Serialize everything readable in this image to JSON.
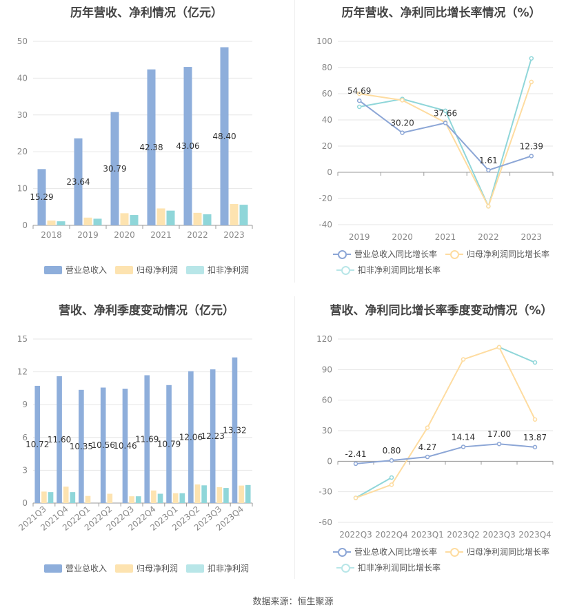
{
  "colors": {
    "revenue": "#8eaedb",
    "net_profit": "#fde3b0",
    "deducted_profit": "#8fd6d9",
    "revenue_line": "#8ca6d6",
    "net_profit_line": "#fedca0",
    "deducted_line": "#8fd6d9"
  },
  "source_text": "数据来源：恒生聚源",
  "chart_data": [
    {
      "id": "annual-bar",
      "type": "bar",
      "title": "历年营收、净利情况（亿元）",
      "categories": [
        "2018",
        "2019",
        "2020",
        "2021",
        "2022",
        "2023"
      ],
      "ylim": [
        0,
        50
      ],
      "yticks": [
        0,
        10,
        20,
        30,
        40,
        50
      ],
      "series": [
        {
          "name": "营业总收入",
          "values": [
            15.29,
            23.64,
            30.79,
            42.38,
            43.06,
            48.4
          ],
          "labels": [
            "15.29",
            "23.64",
            "30.79",
            "42.38",
            "43.06",
            "48.40"
          ]
        },
        {
          "name": "归母净利润",
          "values": [
            1.3,
            2.1,
            3.3,
            4.6,
            3.4,
            5.8
          ]
        },
        {
          "name": "扣非净利润",
          "values": [
            1.1,
            1.8,
            2.8,
            4.0,
            3.0,
            5.6
          ]
        }
      ],
      "legend": "bottom"
    },
    {
      "id": "annual-line",
      "type": "line",
      "title": "历年营收、净利同比增长率情况（%）",
      "categories": [
        "2019",
        "2020",
        "2021",
        "2022",
        "2023"
      ],
      "ylim": [
        -40,
        100
      ],
      "yticks": [
        -40,
        -20,
        0,
        20,
        40,
        60,
        80,
        100
      ],
      "series": [
        {
          "name": "营业总收入同比增长率",
          "values": [
            54.69,
            30.2,
            37.66,
            1.61,
            12.39
          ],
          "labels": [
            "54.69",
            "30.20",
            "37.66",
            "1.61",
            "12.39"
          ]
        },
        {
          "name": "归母净利润同比增长率",
          "values": [
            60,
            55,
            38,
            -26,
            69
          ]
        },
        {
          "name": "扣非净利润同比增长率",
          "values": [
            50,
            56,
            47,
            -26,
            87
          ]
        }
      ],
      "legend": "bottom"
    },
    {
      "id": "quarter-bar",
      "type": "bar",
      "title": "营收、净利季度变动情况（亿元）",
      "categories": [
        "2021Q3",
        "2021Q4",
        "2022Q1",
        "2022Q2",
        "2022Q3",
        "2022Q4",
        "2023Q1",
        "2023Q2",
        "2023Q3",
        "2023Q4"
      ],
      "ylim": [
        0,
        15
      ],
      "yticks": [
        0,
        3,
        6,
        9,
        12,
        15
      ],
      "series": [
        {
          "name": "营业总收入",
          "values": [
            10.72,
            11.6,
            10.35,
            10.56,
            10.46,
            11.69,
            10.79,
            12.06,
            12.23,
            13.32
          ],
          "labels": [
            "10.72",
            "11.60",
            "10.35",
            "10.56",
            "10.46",
            "11.69",
            "10.79",
            "12.06",
            "12.23",
            "13.32"
          ]
        },
        {
          "name": "归母净利润",
          "values": [
            1.05,
            1.5,
            0.65,
            0.85,
            0.62,
            1.15,
            0.9,
            1.7,
            1.45,
            1.6
          ]
        },
        {
          "name": "扣非净利润",
          "values": [
            1.0,
            1.0,
            null,
            null,
            0.62,
            0.85,
            0.9,
            1.62,
            1.38,
            1.65
          ]
        }
      ],
      "legend": "bottom"
    },
    {
      "id": "quarter-line",
      "type": "line",
      "title": "营收、净利同比增长率季度变动情况（%）",
      "categories": [
        "2022Q3",
        "2022Q4",
        "2023Q1",
        "2023Q2",
        "2023Q3",
        "2023Q4"
      ],
      "ylim": [
        -60,
        120
      ],
      "yticks": [
        -60,
        -30,
        0,
        30,
        60,
        90,
        120
      ],
      "series": [
        {
          "name": "营业总收入同比增长率",
          "values": [
            -2.41,
            0.8,
            4.27,
            14.14,
            17.0,
            13.87
          ],
          "labels": [
            "-2.41",
            "0.80",
            "4.27",
            "14.14",
            "17.00",
            "13.87"
          ]
        },
        {
          "name": "归母净利润同比增长率",
          "values": [
            -36,
            -23,
            33,
            100,
            112,
            41
          ]
        },
        {
          "name": "扣非净利润同比增长率",
          "values": [
            -36,
            -16,
            null,
            null,
            112,
            97
          ]
        }
      ],
      "legend": "bottom"
    }
  ]
}
